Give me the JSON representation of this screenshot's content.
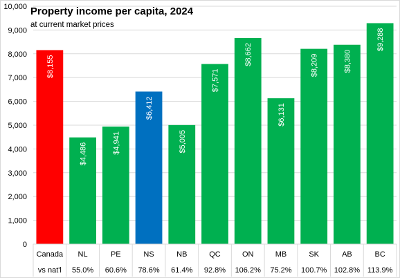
{
  "chart_data": {
    "type": "bar",
    "title": "Property income per capita, 2024",
    "subtitle": "at current market prices",
    "xlabel": "",
    "ylabel": "",
    "ylim": [
      0,
      10000
    ],
    "y_ticks": [
      0,
      1000,
      2000,
      3000,
      4000,
      5000,
      6000,
      7000,
      8000,
      9000,
      10000
    ],
    "y_tick_labels": [
      "0",
      "1,000",
      "2,000",
      "3,000",
      "4,000",
      "5,000",
      "6,000",
      "7,000",
      "8,000",
      "9,000",
      "10,000"
    ],
    "grid": true,
    "legend": "none",
    "categories": [
      "Canada",
      "NL",
      "PE",
      "NS",
      "NB",
      "QC",
      "ON",
      "MB",
      "SK",
      "AB",
      "BC"
    ],
    "values": [
      8155,
      4486,
      4941,
      6412,
      5005,
      7571,
      8662,
      6131,
      8209,
      8380,
      9288
    ],
    "value_labels": [
      "$8,155",
      "$4,486",
      "$4,941",
      "$6,412",
      "$5,005",
      "$7,571",
      "$8,662",
      "$6,131",
      "$8,209",
      "$8,380",
      "$9,288"
    ],
    "row2_label": "vs nat'l",
    "vs_national": [
      "",
      "55.0%",
      "60.6%",
      "78.6%",
      "61.4%",
      "92.8%",
      "106.2%",
      "75.2%",
      "100.7%",
      "102.8%",
      "113.9%"
    ],
    "bar_colors": [
      "#ff0000",
      "#00b050",
      "#00b050",
      "#0070c0",
      "#00b050",
      "#00b050",
      "#00b050",
      "#00b050",
      "#00b050",
      "#00b050",
      "#00b050"
    ],
    "colors": {
      "canada": "#ff0000",
      "nova_scotia": "#0070c0",
      "provinces": "#00b050",
      "gridline": "#d9d9d9",
      "value_label": "#ffffff"
    }
  }
}
